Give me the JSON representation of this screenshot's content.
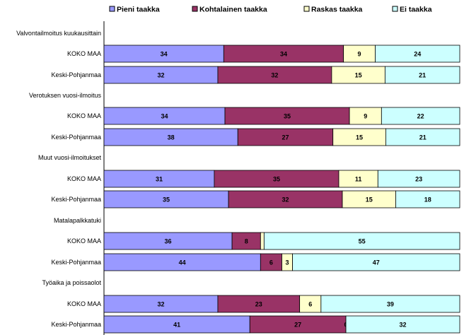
{
  "chart_data": {
    "type": "bar",
    "orientation": "horizontal",
    "stacked": true,
    "percent": true,
    "title": "",
    "xlabel": "",
    "ylabel": "",
    "xlim": [
      0,
      100
    ],
    "legend_position": "top",
    "series": [
      {
        "name": "Pieni taakka",
        "color": "#9999ff"
      },
      {
        "name": "Kohtalainen taakka",
        "color": "#993366"
      },
      {
        "name": "Raskas taakka",
        "color": "#ffffcc"
      },
      {
        "name": "Ei taakka",
        "color": "#ccffff"
      }
    ],
    "groups": [
      {
        "title": "Valvontailmoitus kuukausittain",
        "rows": [
          {
            "label": "KOKO MAA",
            "values": [
              34,
              34,
              9,
              24
            ]
          },
          {
            "label": "Keski-Pohjanmaa",
            "values": [
              32,
              32,
              15,
              21
            ]
          }
        ]
      },
      {
        "title": "Verotuksen vuosi-ilmoitus",
        "rows": [
          {
            "label": "KOKO MAA",
            "values": [
              34,
              35,
              9,
              22
            ]
          },
          {
            "label": "Keski-Pohjanmaa",
            "values": [
              38,
              27,
              15,
              21
            ]
          }
        ]
      },
      {
        "title": "Muut vuosi-ilmoitukset",
        "rows": [
          {
            "label": "KOKO MAA",
            "values": [
              31,
              35,
              11,
              23
            ]
          },
          {
            "label": "Keski-Pohjanmaa",
            "values": [
              35,
              32,
              15,
              18
            ]
          }
        ]
      },
      {
        "title": "Matalapalkkatuki",
        "rows": [
          {
            "label": "KOKO MAA",
            "values": [
              36,
              8,
              1,
              55
            ]
          },
          {
            "label": "Keski-Pohjanmaa",
            "values": [
              44,
              6,
              3,
              47
            ]
          }
        ]
      },
      {
        "title": "Työaika ja poissaolot",
        "rows": [
          {
            "label": "KOKO MAA",
            "values": [
              32,
              23,
              6,
              39
            ]
          },
          {
            "label": "Keski-Pohjanmaa",
            "values": [
              41,
              27,
              0,
              32
            ]
          }
        ]
      }
    ]
  }
}
